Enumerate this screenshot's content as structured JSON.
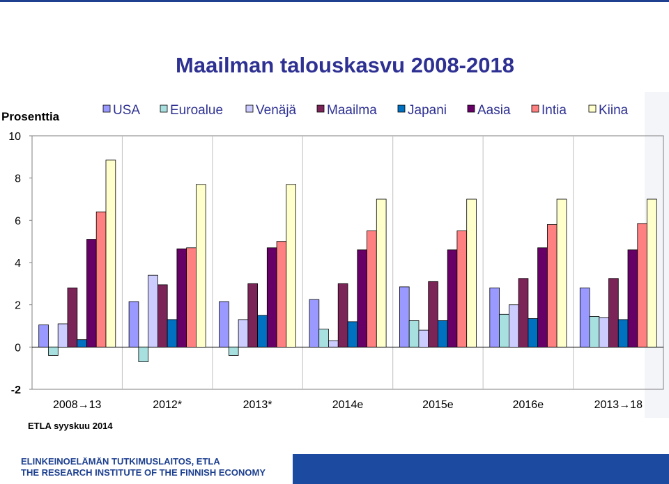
{
  "slide": {
    "title": "Maailman talouskasvu 2008-2018",
    "source": "ETLA syyskuu 2014",
    "footer_line1": "ELINKEINOELÄMÄN TUTKIMUSLAITOS, ETLA",
    "footer_line2": "THE RESEARCH INSTITUTE OF THE FINNISH ECONOMY"
  },
  "colors": {
    "title": "#2e3192",
    "footer_band": "#1c4aa0",
    "footer_text": "#1c3f8f"
  },
  "chart_data": {
    "type": "bar",
    "title": "Maailman talouskasvu 2008-2018",
    "ylabel": "Prosenttia",
    "xlabel": "",
    "ylim": [
      -2,
      10
    ],
    "yticks": [
      -2,
      0,
      2,
      4,
      6,
      8,
      10
    ],
    "grid": false,
    "legend_position": "top",
    "categories": [
      "2008→13",
      "2012*",
      "2013*",
      "2014e",
      "2015e",
      "2016e",
      "2013→18"
    ],
    "series": [
      {
        "name": "USA",
        "color": "#9999ff",
        "values": [
          1.05,
          2.15,
          2.15,
          2.25,
          2.85,
          2.8,
          2.8
        ]
      },
      {
        "name": "Euroalue",
        "color": "#a8e0e0",
        "values": [
          -0.4,
          -0.7,
          -0.4,
          0.85,
          1.25,
          1.55,
          1.45
        ]
      },
      {
        "name": "Venäjä",
        "color": "#ccccff",
        "values": [
          1.1,
          3.4,
          1.3,
          0.3,
          0.8,
          2.0,
          1.4
        ]
      },
      {
        "name": "Maailma",
        "color": "#7b2458",
        "values": [
          2.8,
          2.95,
          3.0,
          3.0,
          3.1,
          3.25,
          3.25
        ]
      },
      {
        "name": "Japani",
        "color": "#0070c0",
        "values": [
          0.35,
          1.3,
          1.5,
          1.2,
          1.25,
          1.35,
          1.3
        ]
      },
      {
        "name": "Aasia",
        "color": "#660066",
        "values": [
          5.1,
          4.65,
          4.7,
          4.6,
          4.6,
          4.7,
          4.6
        ]
      },
      {
        "name": "Intia",
        "color": "#ff8080",
        "values": [
          6.4,
          4.7,
          5.0,
          5.5,
          5.5,
          5.8,
          5.85
        ]
      },
      {
        "name": "Kiina",
        "color": "#ffffcc",
        "values": [
          8.85,
          7.7,
          7.7,
          7.0,
          7.0,
          7.0,
          7.0
        ]
      }
    ]
  }
}
